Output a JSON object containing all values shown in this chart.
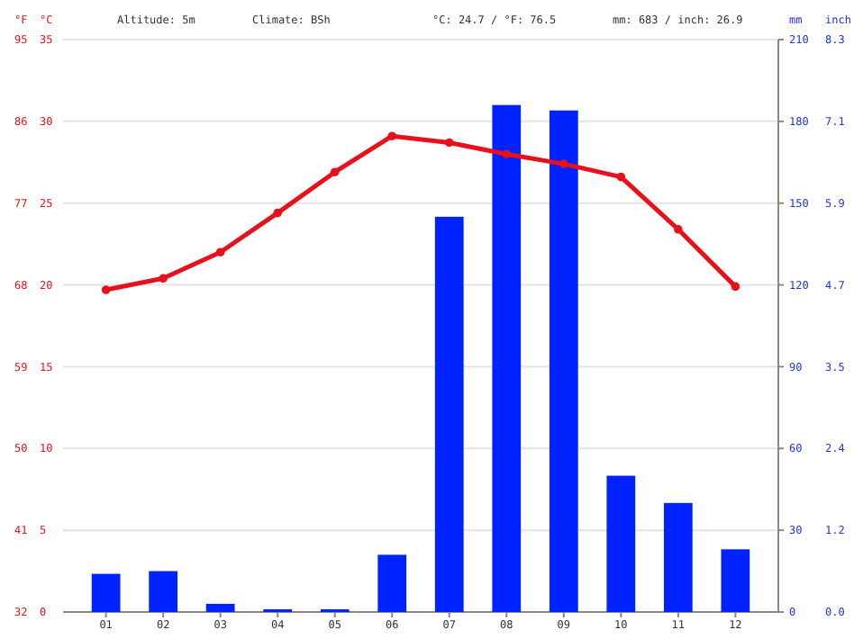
{
  "chart_data": {
    "type": "bar",
    "categories": [
      "01",
      "02",
      "03",
      "04",
      "05",
      "06",
      "07",
      "08",
      "09",
      "10",
      "11",
      "12"
    ],
    "series": [
      {
        "axis": "y2",
        "color": "#0022ff",
        "values": [
          14,
          15,
          3,
          1,
          1,
          21,
          145,
          186,
          184,
          50,
          40,
          23
        ]
      },
      {
        "type": "line",
        "axis": "y",
        "color": "#e8101a",
        "marker": "circle",
        "values": [
          19.7,
          20.4,
          22.0,
          24.4,
          26.9,
          29.1,
          28.7,
          28.0,
          27.4,
          26.6,
          23.4,
          19.9
        ]
      }
    ],
    "ylabel": "°C",
    "y3label": "°F",
    "y2label": "mm",
    "ylim": [
      0,
      35
    ],
    "yticks": [
      0,
      5,
      10,
      15,
      20,
      25,
      30,
      35
    ],
    "y3lim": [
      32,
      95
    ],
    "y3ticks": [
      32,
      41,
      50,
      59,
      68,
      77,
      86,
      95
    ],
    "y2lim": [
      0,
      210
    ],
    "y2ticks": [
      0,
      30,
      60,
      90,
      120,
      150,
      180,
      210
    ],
    "annotations": [
      "Altitude: 5m",
      "Climate: BSh",
      "°C: 24.7 / °F: 76.5",
      "mm: 683 / inch: 26.9",
      "inch",
      "0.0",
      "1.2",
      "2.4",
      "3.5",
      "4.7",
      "5.9",
      "7.1",
      "8.3"
    ],
    "grid": "y"
  }
}
